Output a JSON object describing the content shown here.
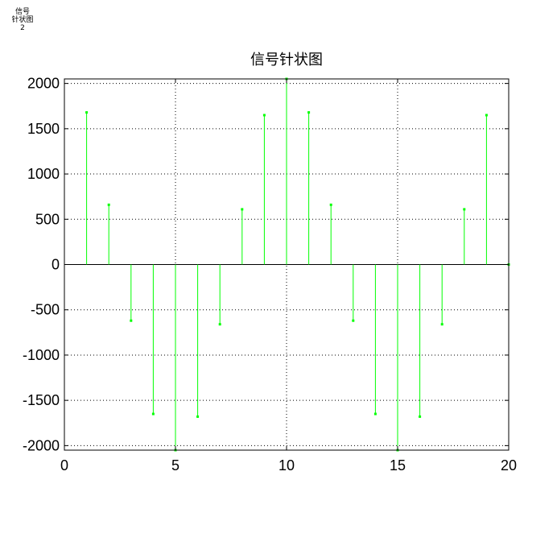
{
  "window_label": [
    "信号",
    "针状图",
    "2"
  ],
  "chart_data": {
    "type": "stem",
    "title": "信号针状图",
    "xlabel": "",
    "ylabel": "",
    "xlim": [
      0,
      20
    ],
    "ylim": [
      -2050,
      2050
    ],
    "xticks": [
      0,
      5,
      10,
      15,
      20
    ],
    "yticks": [
      -2000,
      -1500,
      -1000,
      -500,
      0,
      500,
      1000,
      1500,
      2000
    ],
    "grid": true,
    "series": [
      {
        "color": "#00ff00",
        "x": [
          1,
          2,
          3,
          4,
          5,
          6,
          7,
          8,
          9,
          10,
          11,
          12,
          13,
          14,
          15,
          16,
          17,
          18,
          19,
          20
        ],
        "values": [
          1680,
          660,
          -620,
          -1650,
          -2050,
          -1680,
          -660,
          610,
          1650,
          2050,
          1680,
          660,
          -620,
          -1650,
          -2050,
          -1680,
          -660,
          610,
          1650,
          0
        ]
      }
    ]
  }
}
